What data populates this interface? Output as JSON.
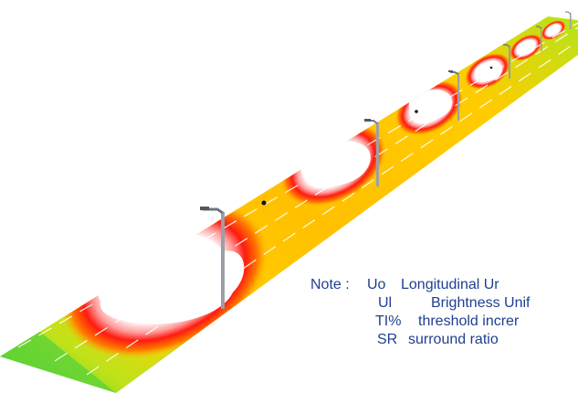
{
  "note": {
    "prefix": "Note :",
    "rows": [
      {
        "abbr": "Uo",
        "text": "Longitudinal Ur"
      },
      {
        "abbr": "Ul",
        "text": "Brightness Unif"
      },
      {
        "abbr": "TI%",
        "text": "threshold increr"
      },
      {
        "abbr": "SR",
        "text": "surround ratio"
      }
    ]
  },
  "colors": {
    "text": "#1f3f8f",
    "road_edge_low": "#3bcf2a",
    "mid": "#ffd200",
    "high": "#ff2a1a",
    "peak": "#ffffff",
    "pole": "#8f96a0"
  }
}
